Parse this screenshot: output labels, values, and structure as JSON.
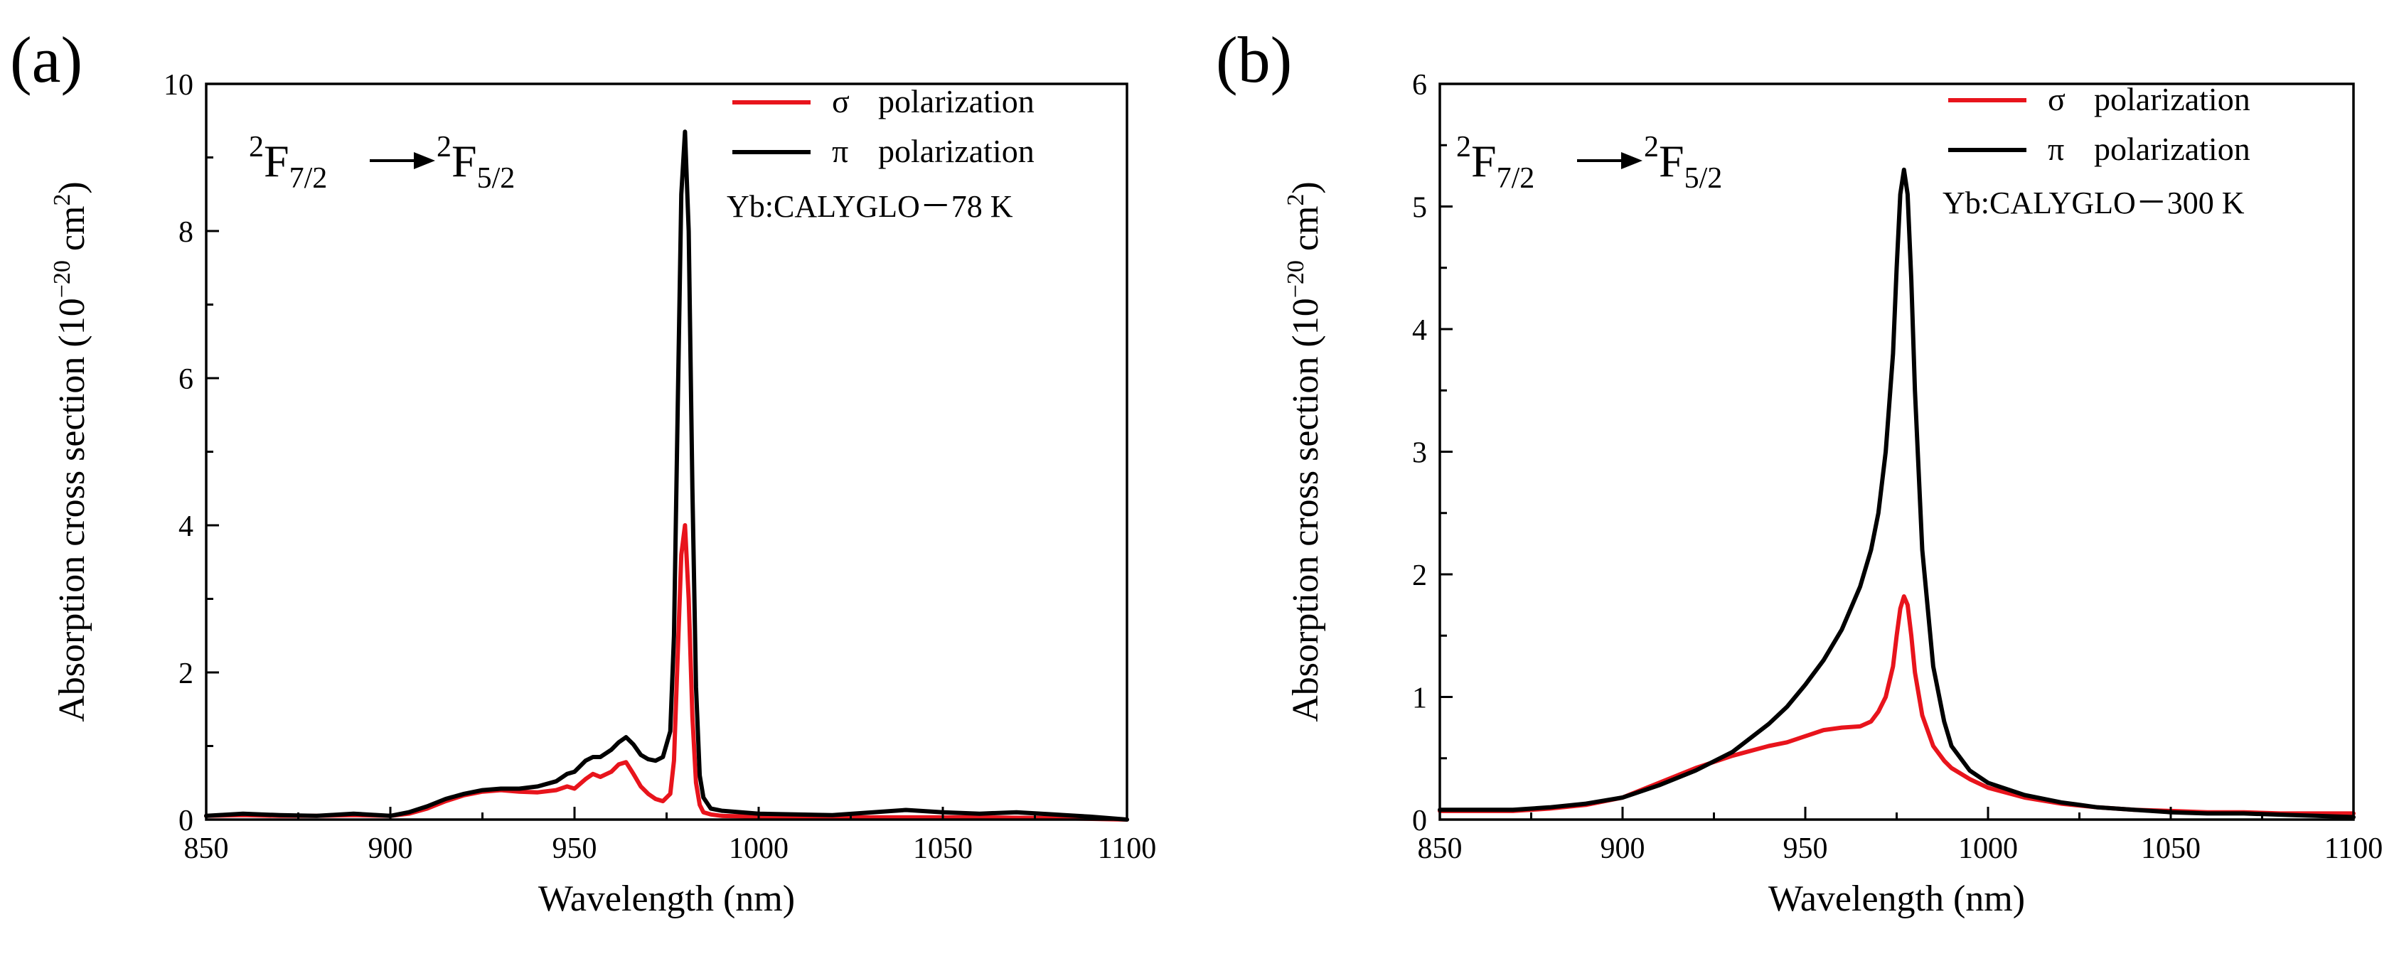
{
  "chart_data": [
    {
      "type": "line",
      "panel_label": "(a)",
      "title": "",
      "xlabel": "Wavelength (nm)",
      "ylabel_main": "Absorption cross section (10",
      "ylabel_exp": "−20",
      "ylabel_unit": " cm",
      "ylabel_unit_exp": "2",
      "ylabel_close": ")",
      "xlim": [
        850,
        1100
      ],
      "ylim": [
        0,
        10
      ],
      "xticks": [
        850,
        900,
        950,
        1000,
        1050,
        1100
      ],
      "yticks": [
        0,
        2,
        4,
        6,
        8,
        10
      ],
      "transition": {
        "sup1": "2",
        "base1": "F",
        "sub1": "7/2",
        "sup2": "2",
        "base2": "F",
        "sub2": "5/2"
      },
      "annotation": "Yb:CALYGLO－78 K",
      "legend_position": "top-right",
      "series": [
        {
          "name": "σ  polarization",
          "symbol": "σ",
          "label": "polarization",
          "color": "#e8141c",
          "x": [
            850,
            860,
            870,
            880,
            890,
            900,
            905,
            910,
            915,
            920,
            925,
            930,
            935,
            940,
            945,
            948,
            950,
            953,
            955,
            957,
            960,
            962,
            964,
            966,
            968,
            970,
            972,
            974,
            976,
            977,
            978,
            979,
            980,
            981,
            982,
            983,
            984,
            985,
            987,
            990,
            1000,
            1020,
            1040,
            1060,
            1080,
            1100
          ],
          "y": [
            0.05,
            0.06,
            0.05,
            0.05,
            0.06,
            0.05,
            0.08,
            0.15,
            0.25,
            0.33,
            0.38,
            0.4,
            0.38,
            0.37,
            0.4,
            0.45,
            0.42,
            0.55,
            0.62,
            0.58,
            0.65,
            0.75,
            0.78,
            0.62,
            0.45,
            0.35,
            0.28,
            0.25,
            0.35,
            0.8,
            2.2,
            3.6,
            4.0,
            3.0,
            1.4,
            0.5,
            0.2,
            0.1,
            0.07,
            0.05,
            0.04,
            0.03,
            0.03,
            0.03,
            0.02,
            0.0
          ]
        },
        {
          "name": "π  polarization",
          "symbol": "π",
          "label": "polarization",
          "color": "#000000",
          "x": [
            850,
            860,
            870,
            880,
            890,
            900,
            905,
            910,
            915,
            920,
            925,
            930,
            935,
            940,
            945,
            948,
            950,
            953,
            955,
            957,
            960,
            962,
            964,
            966,
            968,
            970,
            972,
            974,
            976,
            977,
            978,
            979,
            980,
            981,
            982,
            983,
            984,
            985,
            987,
            990,
            1000,
            1020,
            1040,
            1050,
            1060,
            1070,
            1080,
            1090,
            1100
          ],
          "y": [
            0.05,
            0.08,
            0.06,
            0.05,
            0.08,
            0.05,
            0.1,
            0.18,
            0.28,
            0.35,
            0.4,
            0.42,
            0.42,
            0.45,
            0.52,
            0.62,
            0.65,
            0.8,
            0.85,
            0.85,
            0.95,
            1.05,
            1.12,
            1.02,
            0.88,
            0.82,
            0.8,
            0.85,
            1.2,
            2.5,
            5.5,
            8.5,
            9.35,
            8.0,
            4.5,
            1.8,
            0.6,
            0.3,
            0.15,
            0.12,
            0.08,
            0.06,
            0.13,
            0.1,
            0.08,
            0.1,
            0.07,
            0.04,
            0.0
          ]
        }
      ]
    },
    {
      "type": "line",
      "panel_label": "(b)",
      "title": "",
      "xlabel": "Wavelength (nm)",
      "ylabel_main": "Absorption cross section (10",
      "ylabel_exp": "−20",
      "ylabel_unit": " cm",
      "ylabel_unit_exp": "2",
      "ylabel_close": ")",
      "xlim": [
        850,
        1100
      ],
      "ylim": [
        0,
        6
      ],
      "xticks": [
        850,
        900,
        950,
        1000,
        1050,
        1100
      ],
      "yticks": [
        0,
        1,
        2,
        3,
        4,
        5,
        6
      ],
      "transition": {
        "sup1": "2",
        "base1": "F",
        "sub1": "7/2",
        "sup2": "2",
        "base2": "F",
        "sub2": "5/2"
      },
      "annotation": "Yb:CALYGLO－300 K",
      "legend_position": "top-right",
      "series": [
        {
          "name": "σ  polarization",
          "symbol": "σ",
          "label": "polarization",
          "color": "#e8141c",
          "x": [
            850,
            860,
            870,
            880,
            890,
            900,
            910,
            920,
            930,
            940,
            945,
            950,
            955,
            960,
            965,
            968,
            970,
            972,
            974,
            975,
            976,
            977,
            978,
            979,
            980,
            982,
            985,
            988,
            990,
            995,
            1000,
            1010,
            1020,
            1030,
            1040,
            1050,
            1060,
            1070,
            1080,
            1090,
            1100
          ],
          "y": [
            0.07,
            0.07,
            0.07,
            0.09,
            0.12,
            0.18,
            0.3,
            0.42,
            0.52,
            0.6,
            0.63,
            0.68,
            0.73,
            0.75,
            0.76,
            0.8,
            0.88,
            1.0,
            1.25,
            1.5,
            1.72,
            1.82,
            1.75,
            1.5,
            1.2,
            0.85,
            0.6,
            0.48,
            0.42,
            0.33,
            0.26,
            0.18,
            0.13,
            0.1,
            0.08,
            0.07,
            0.06,
            0.06,
            0.05,
            0.05,
            0.05
          ]
        },
        {
          "name": "π  polarization",
          "symbol": "π",
          "label": "polarization",
          "color": "#000000",
          "x": [
            850,
            860,
            870,
            880,
            890,
            900,
            910,
            920,
            930,
            940,
            945,
            950,
            955,
            960,
            965,
            968,
            970,
            972,
            974,
            975,
            976,
            977,
            978,
            979,
            980,
            982,
            985,
            988,
            990,
            995,
            1000,
            1010,
            1020,
            1030,
            1040,
            1050,
            1060,
            1070,
            1080,
            1090,
            1100
          ],
          "y": [
            0.08,
            0.08,
            0.08,
            0.1,
            0.13,
            0.18,
            0.28,
            0.4,
            0.55,
            0.78,
            0.92,
            1.1,
            1.3,
            1.55,
            1.9,
            2.2,
            2.5,
            3.0,
            3.8,
            4.5,
            5.1,
            5.3,
            5.1,
            4.4,
            3.5,
            2.2,
            1.25,
            0.8,
            0.6,
            0.4,
            0.3,
            0.2,
            0.14,
            0.1,
            0.08,
            0.06,
            0.05,
            0.05,
            0.04,
            0.03,
            0.02
          ]
        }
      ]
    }
  ]
}
